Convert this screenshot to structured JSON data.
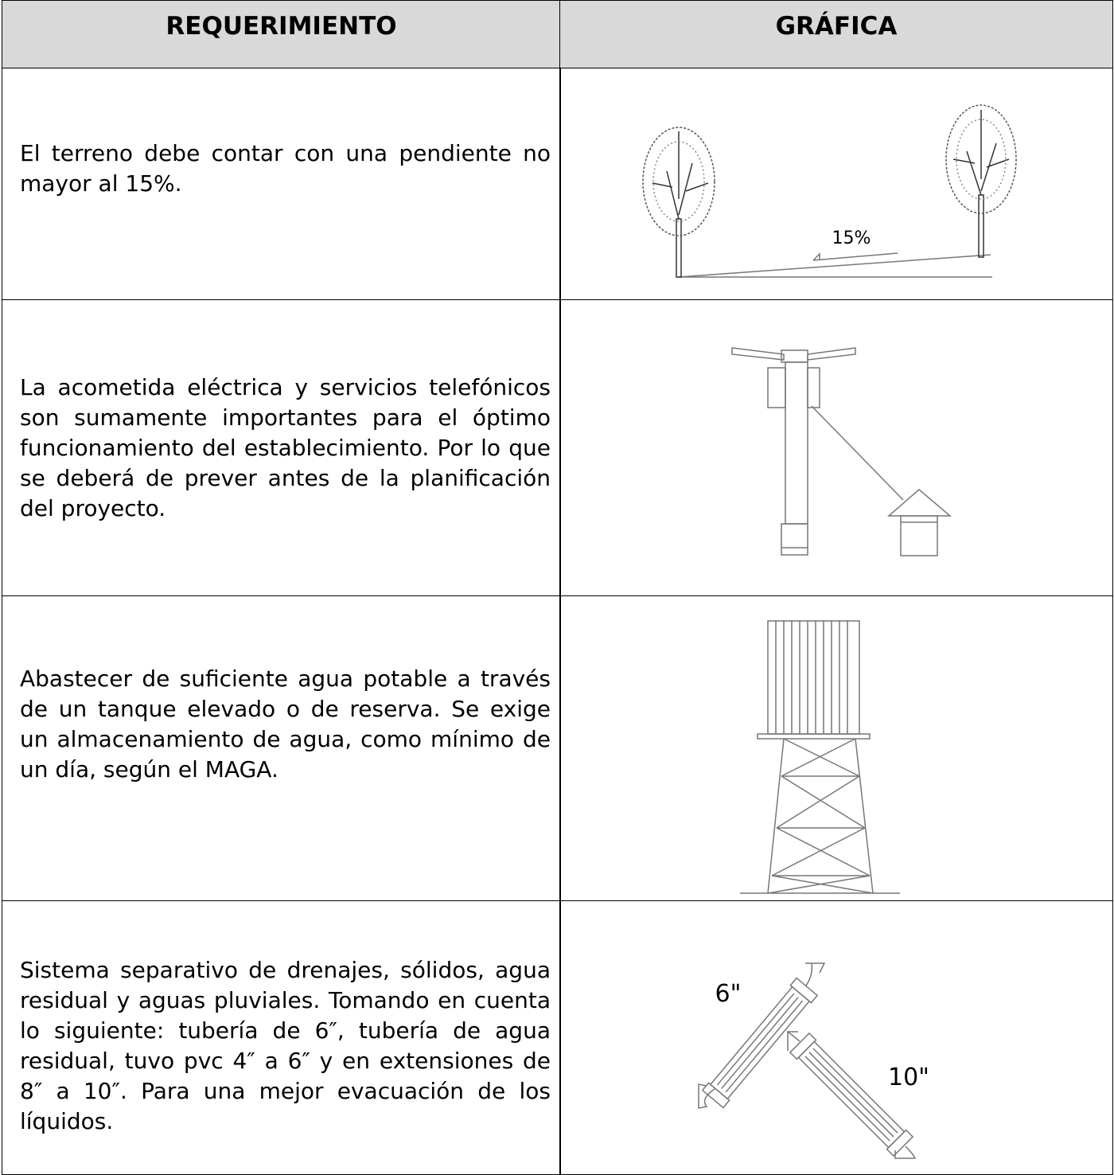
{
  "table": {
    "header": [
      "REQUERIMIENTO",
      "GRÁFICA"
    ],
    "rows": [
      {
        "requirement": "El terreno debe contar con una pendiente no mayor al 15%.",
        "graphic_labels": [
          "15%"
        ]
      },
      {
        "requirement": "La acometida eléctrica y servicios telefónicos son sumamente importantes para el óptimo funcionamiento del establecimiento. Por lo que se deberá de prever antes de la planificación del proyecto."
      },
      {
        "requirement": "Abastecer de suficiente agua potable a través de un tanque elevado o de reserva. Se exige un almacenamiento de agua, como mínimo de un día, según el MAGA."
      },
      {
        "requirement": "Sistema separativo de drenajes, sólidos, agua residual y aguas pluviales. Tomando en cuenta lo siguiente: tubería de 6″, tubería de agua residual, tuvo pvc 4″ a 6″ y en extensiones de 8″ a 10″. Para una mejor evacuación de los líquidos.",
        "graphic_labels": [
          "6\"",
          "10\""
        ]
      }
    ]
  }
}
